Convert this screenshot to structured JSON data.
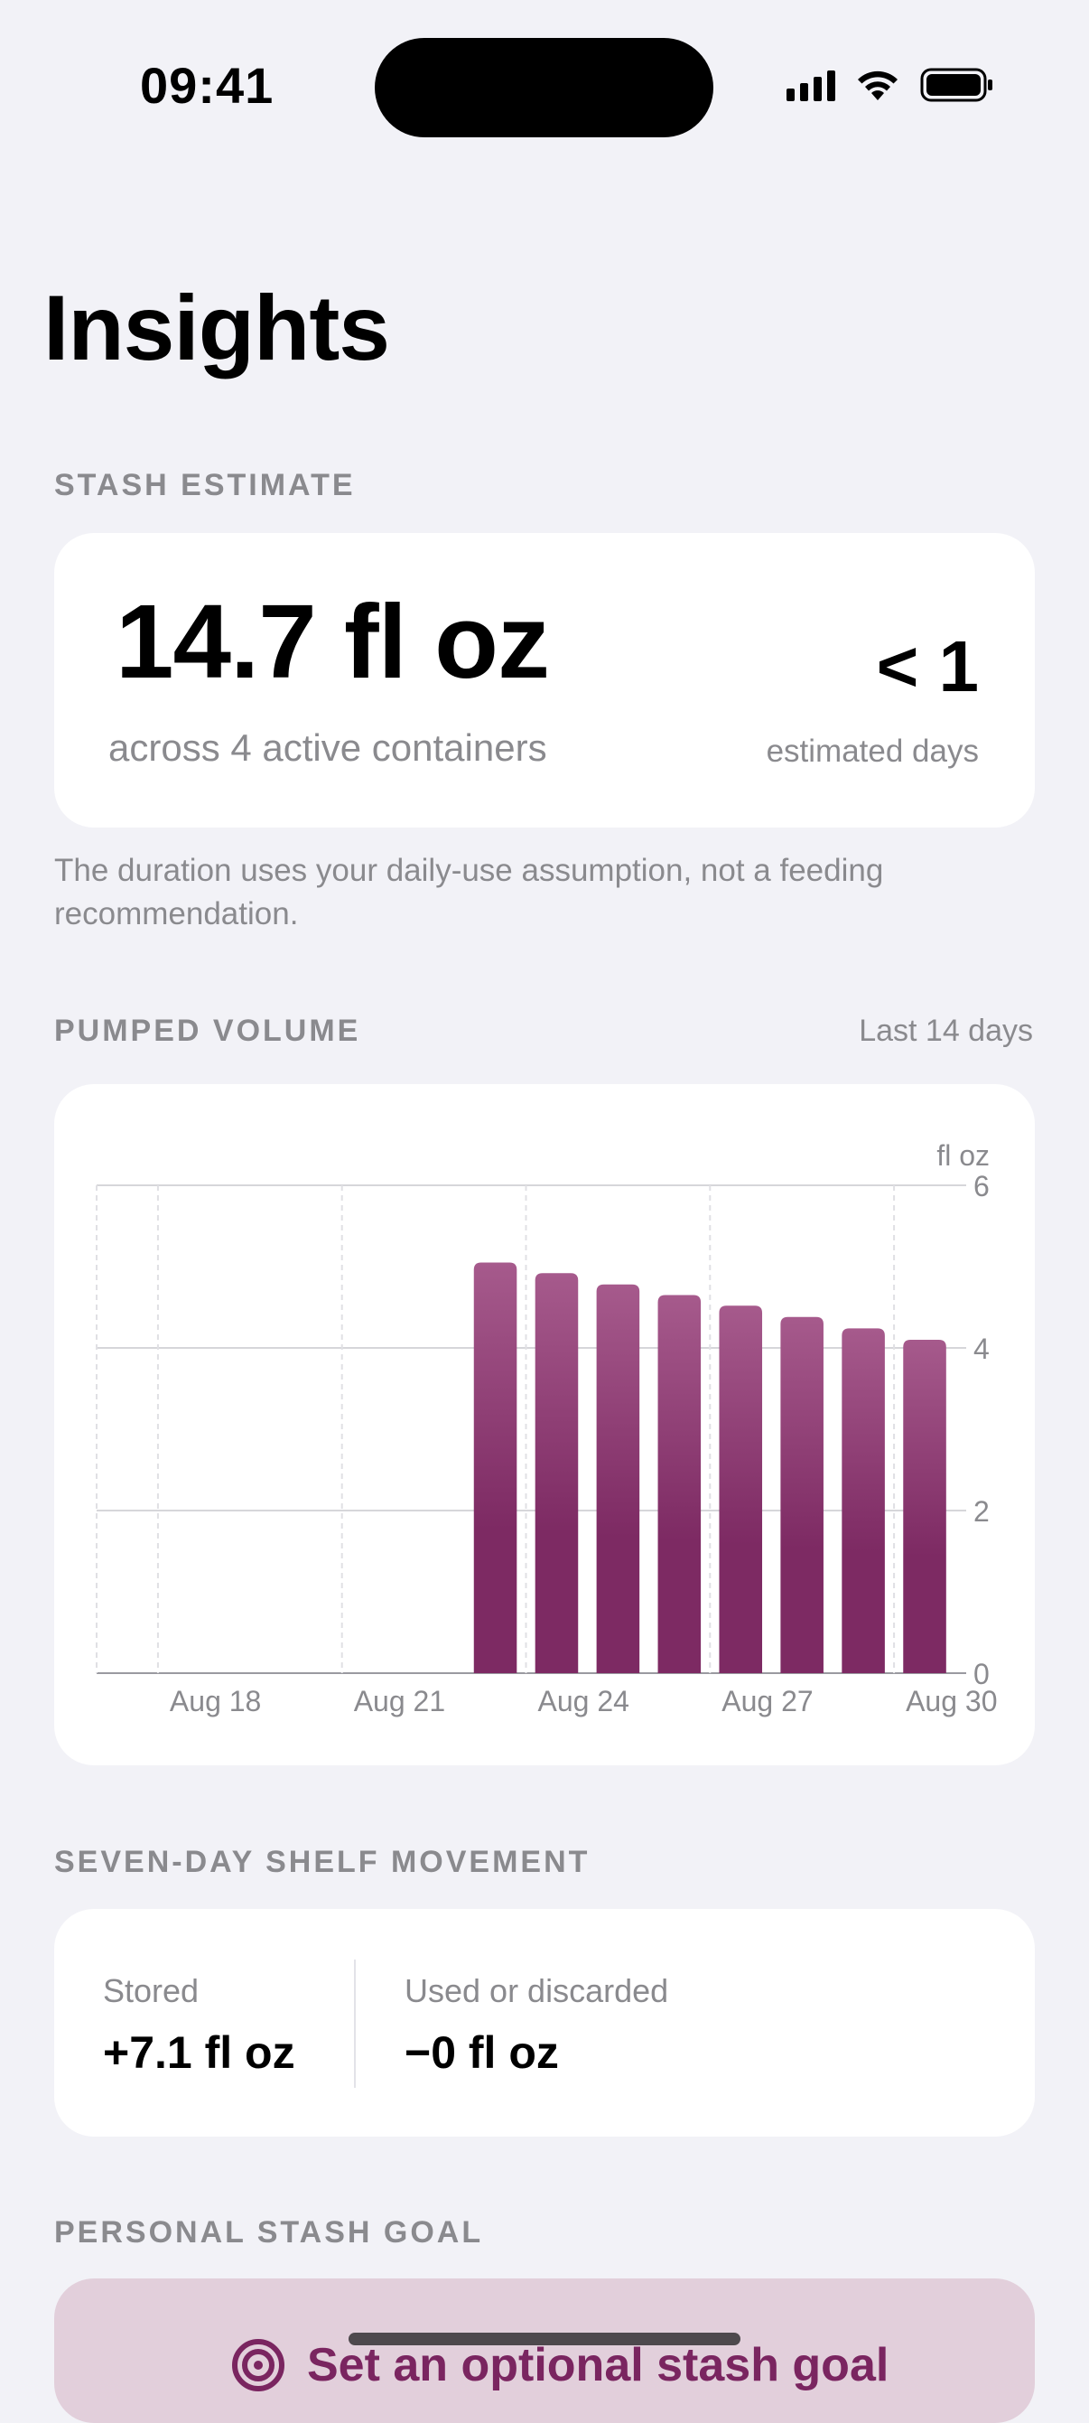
{
  "status_bar": {
    "time": "09:41"
  },
  "page": {
    "title": "Insights"
  },
  "stash_estimate": {
    "header": "STASH ESTIMATE",
    "amount": "14.7 fl oz",
    "subtitle": "across 4 active containers",
    "days_value": "< 1",
    "days_label": "estimated days",
    "note": "The duration uses your daily-use assumption, not a feeding recommendation."
  },
  "pumped_volume": {
    "header": "PUMPED VOLUME",
    "range": "Last 14 days"
  },
  "chart_data": {
    "type": "bar",
    "unit_label": "fl oz",
    "x_tick_labels": [
      "Aug 18",
      "Aug 21",
      "Aug 24",
      "Aug 27",
      "Aug 30"
    ],
    "categories": [
      "Aug 17",
      "Aug 18",
      "Aug 19",
      "Aug 20",
      "Aug 21",
      "Aug 22",
      "Aug 23",
      "Aug 24",
      "Aug 25",
      "Aug 26",
      "Aug 27",
      "Aug 28",
      "Aug 29",
      "Aug 30"
    ],
    "values": [
      0,
      0,
      0,
      0,
      0,
      0,
      5.05,
      4.92,
      4.78,
      4.65,
      4.52,
      4.38,
      4.24,
      4.1
    ],
    "ylim": [
      0,
      6
    ],
    "y_ticks": [
      0,
      2,
      4,
      6
    ],
    "bar_color_top": "#a65a8c",
    "bar_color_bottom": "#7d2a63"
  },
  "shelf_movement": {
    "header": "SEVEN-DAY SHELF MOVEMENT",
    "stored_label": "Stored",
    "stored_value": "+7.1 fl oz",
    "used_label": "Used or discarded",
    "used_value": "−0 fl oz"
  },
  "goal": {
    "header": "PERSONAL STASH GOAL",
    "button_label": "Set an optional stash goal",
    "accent": "#7a2560"
  }
}
